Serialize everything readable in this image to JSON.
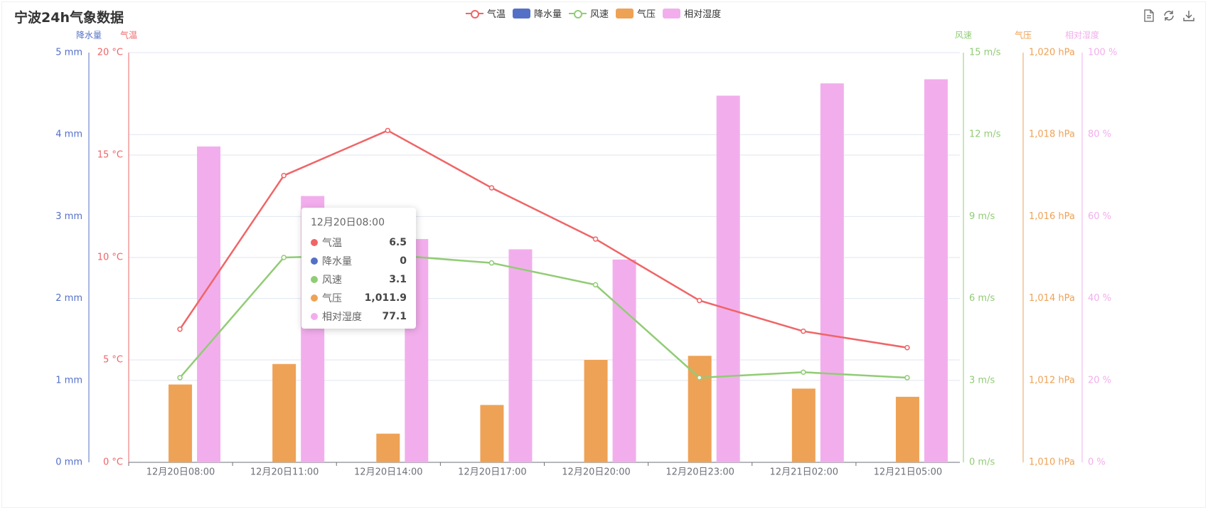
{
  "title": "宁波24h气象数据",
  "toolbox": {
    "icons": [
      "data-view-icon",
      "restore-icon",
      "save-image-icon"
    ]
  },
  "legend": [
    {
      "name": "气温",
      "kind": "line",
      "color": "#ef6567"
    },
    {
      "name": "降水量",
      "kind": "bar",
      "color": "#5470c6"
    },
    {
      "name": "风速",
      "kind": "line",
      "color": "#91cc75"
    },
    {
      "name": "气压",
      "kind": "bar",
      "color": "#eea256"
    },
    {
      "name": "相对湿度",
      "kind": "bar",
      "color": "#f2aeec"
    }
  ],
  "axes": {
    "precip": {
      "name": "降水量",
      "unit": "mm",
      "min": 0,
      "max": 5,
      "ticks": [
        "0 mm",
        "1 mm",
        "2 mm",
        "3 mm",
        "4 mm",
        "5 mm"
      ],
      "color": "#5470c6"
    },
    "temp": {
      "name": "气温",
      "unit": "°C",
      "min": 0,
      "max": 20,
      "ticks": [
        "0 °C",
        "5 °C",
        "10 °C",
        "15 °C",
        "20 °C"
      ],
      "color": "#ef6567"
    },
    "wind": {
      "name": "风速",
      "unit": "m/s",
      "min": 0,
      "max": 15,
      "ticks": [
        "0 m/s",
        "3 m/s",
        "6 m/s",
        "9 m/s",
        "12 m/s",
        "15 m/s"
      ],
      "color": "#91cc75"
    },
    "pressure": {
      "name": "气压",
      "unit": "hPa",
      "min": 1010,
      "max": 1020,
      "ticks": [
        "1,010 hPa",
        "1,012 hPa",
        "1,014 hPa",
        "1,016 hPa",
        "1,018 hPa",
        "1,020 hPa"
      ],
      "color": "#eea256"
    },
    "humidity": {
      "name": "相对湿度",
      "unit": "%",
      "min": 0,
      "max": 100,
      "ticks": [
        "0 %",
        "20 %",
        "40 %",
        "60 %",
        "80 %",
        "100 %"
      ],
      "color": "#f2aeec"
    }
  },
  "chart_data": {
    "type": "bar",
    "title": "宁波24h气象数据",
    "categories": [
      "12月20日08:00",
      "12月20日11:00",
      "12月20日14:00",
      "12月20日17:00",
      "12月20日20:00",
      "12月20日23:00",
      "12月21日02:00",
      "12月21日05:00"
    ],
    "series": [
      {
        "name": "气温",
        "type": "line",
        "axis": "temp",
        "values": [
          6.5,
          14.0,
          16.2,
          13.4,
          10.9,
          7.9,
          6.4,
          5.6
        ]
      },
      {
        "name": "降水量",
        "type": "bar",
        "axis": "precip",
        "values": [
          0,
          0,
          0,
          0,
          0,
          0,
          0,
          0
        ]
      },
      {
        "name": "风速",
        "type": "line",
        "axis": "wind",
        "values": [
          3.1,
          7.5,
          7.6,
          7.3,
          6.5,
          3.1,
          3.3,
          3.1
        ]
      },
      {
        "name": "气压",
        "type": "bar",
        "axis": "pressure",
        "values": [
          1011.9,
          1012.4,
          1010.7,
          1011.4,
          1012.5,
          1012.6,
          1011.8,
          1011.6
        ]
      },
      {
        "name": "相对湿度",
        "type": "bar",
        "axis": "humidity",
        "values": [
          77.1,
          65,
          54.5,
          52,
          49.5,
          89.5,
          92.5,
          93.5
        ]
      }
    ]
  },
  "tooltip": {
    "time": "12月20日08:00",
    "rows": [
      {
        "name": "气温",
        "value": "6.5",
        "color": "#ef6567"
      },
      {
        "name": "降水量",
        "value": "0",
        "color": "#5470c6"
      },
      {
        "name": "风速",
        "value": "3.1",
        "color": "#91cc75"
      },
      {
        "name": "气压",
        "value": "1,011.9",
        "color": "#eea256"
      },
      {
        "name": "相对湿度",
        "value": "77.1",
        "color": "#f2aeec"
      }
    ]
  }
}
